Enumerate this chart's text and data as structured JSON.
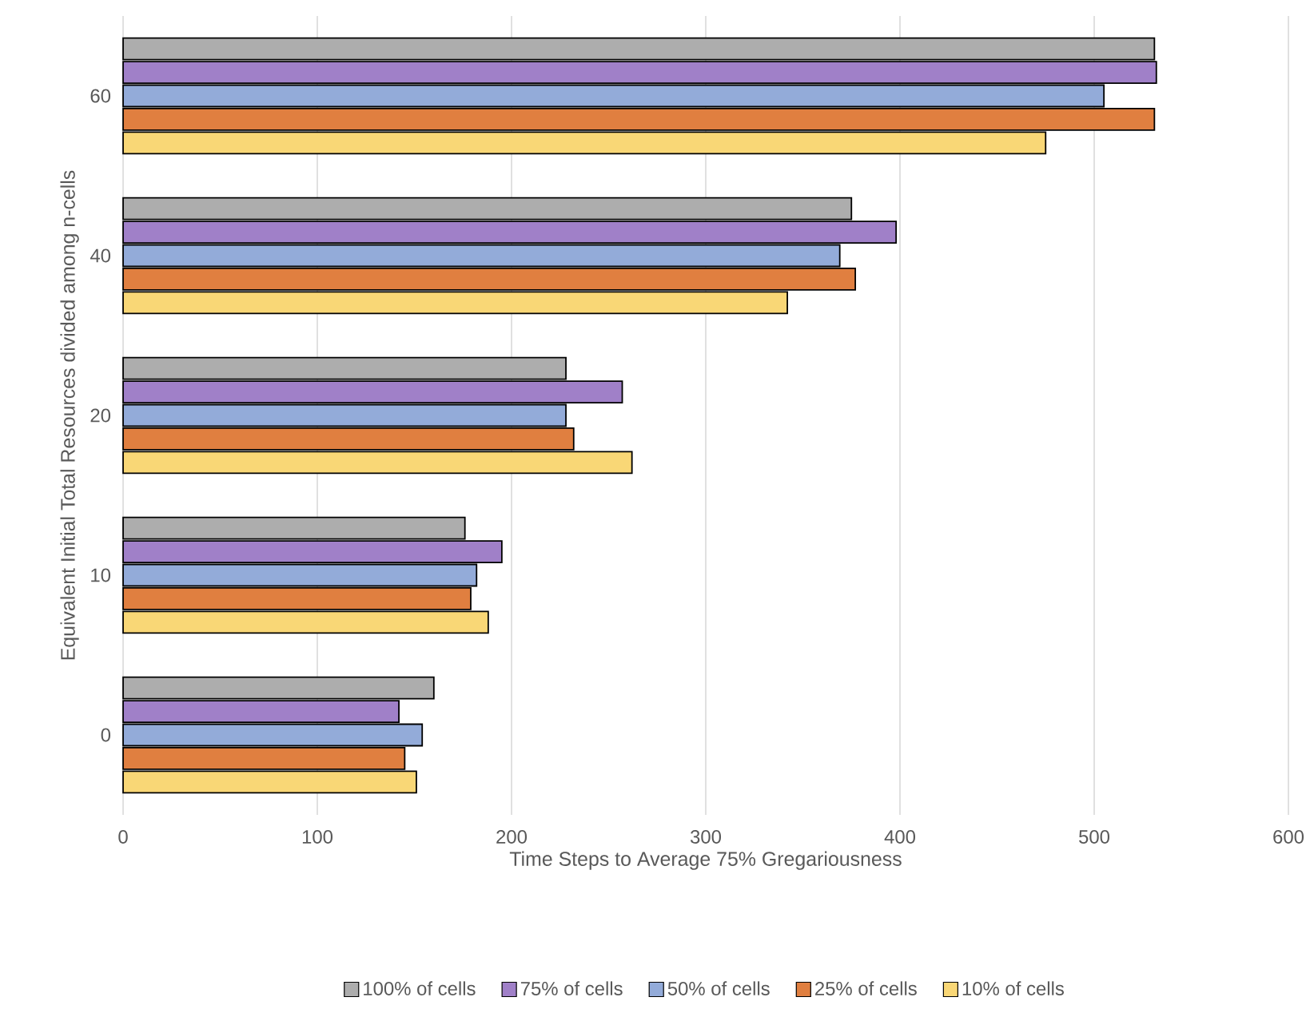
{
  "chart_data": {
    "type": "bar",
    "orientation": "horizontal",
    "xlabel": "Time Steps to Average 75% Gregariousness",
    "ylabel": "Equivalent Initial Total Resources divided among n-cells",
    "categories": [
      "60",
      "40",
      "20",
      "10",
      "0"
    ],
    "series": [
      {
        "name": "100% of cells",
        "color": "#adadad",
        "values": [
          531,
          375,
          228,
          176,
          160
        ]
      },
      {
        "name": "75% of cells",
        "color": "#a080c8",
        "values": [
          532,
          398,
          257,
          195,
          142
        ]
      },
      {
        "name": "50% of cells",
        "color": "#93abd9",
        "values": [
          505,
          369,
          228,
          182,
          154
        ]
      },
      {
        "name": "25% of cells",
        "color": "#e07f40",
        "values": [
          531,
          377,
          232,
          179,
          145
        ]
      },
      {
        "name": "10% of cells",
        "color": "#f9d776",
        "values": [
          475,
          342,
          262,
          188,
          151
        ]
      }
    ],
    "xlim": [
      0,
      600
    ],
    "xticks": [
      0,
      100,
      200,
      300,
      400,
      500,
      600
    ],
    "grid": "x",
    "legend": "bottom"
  }
}
